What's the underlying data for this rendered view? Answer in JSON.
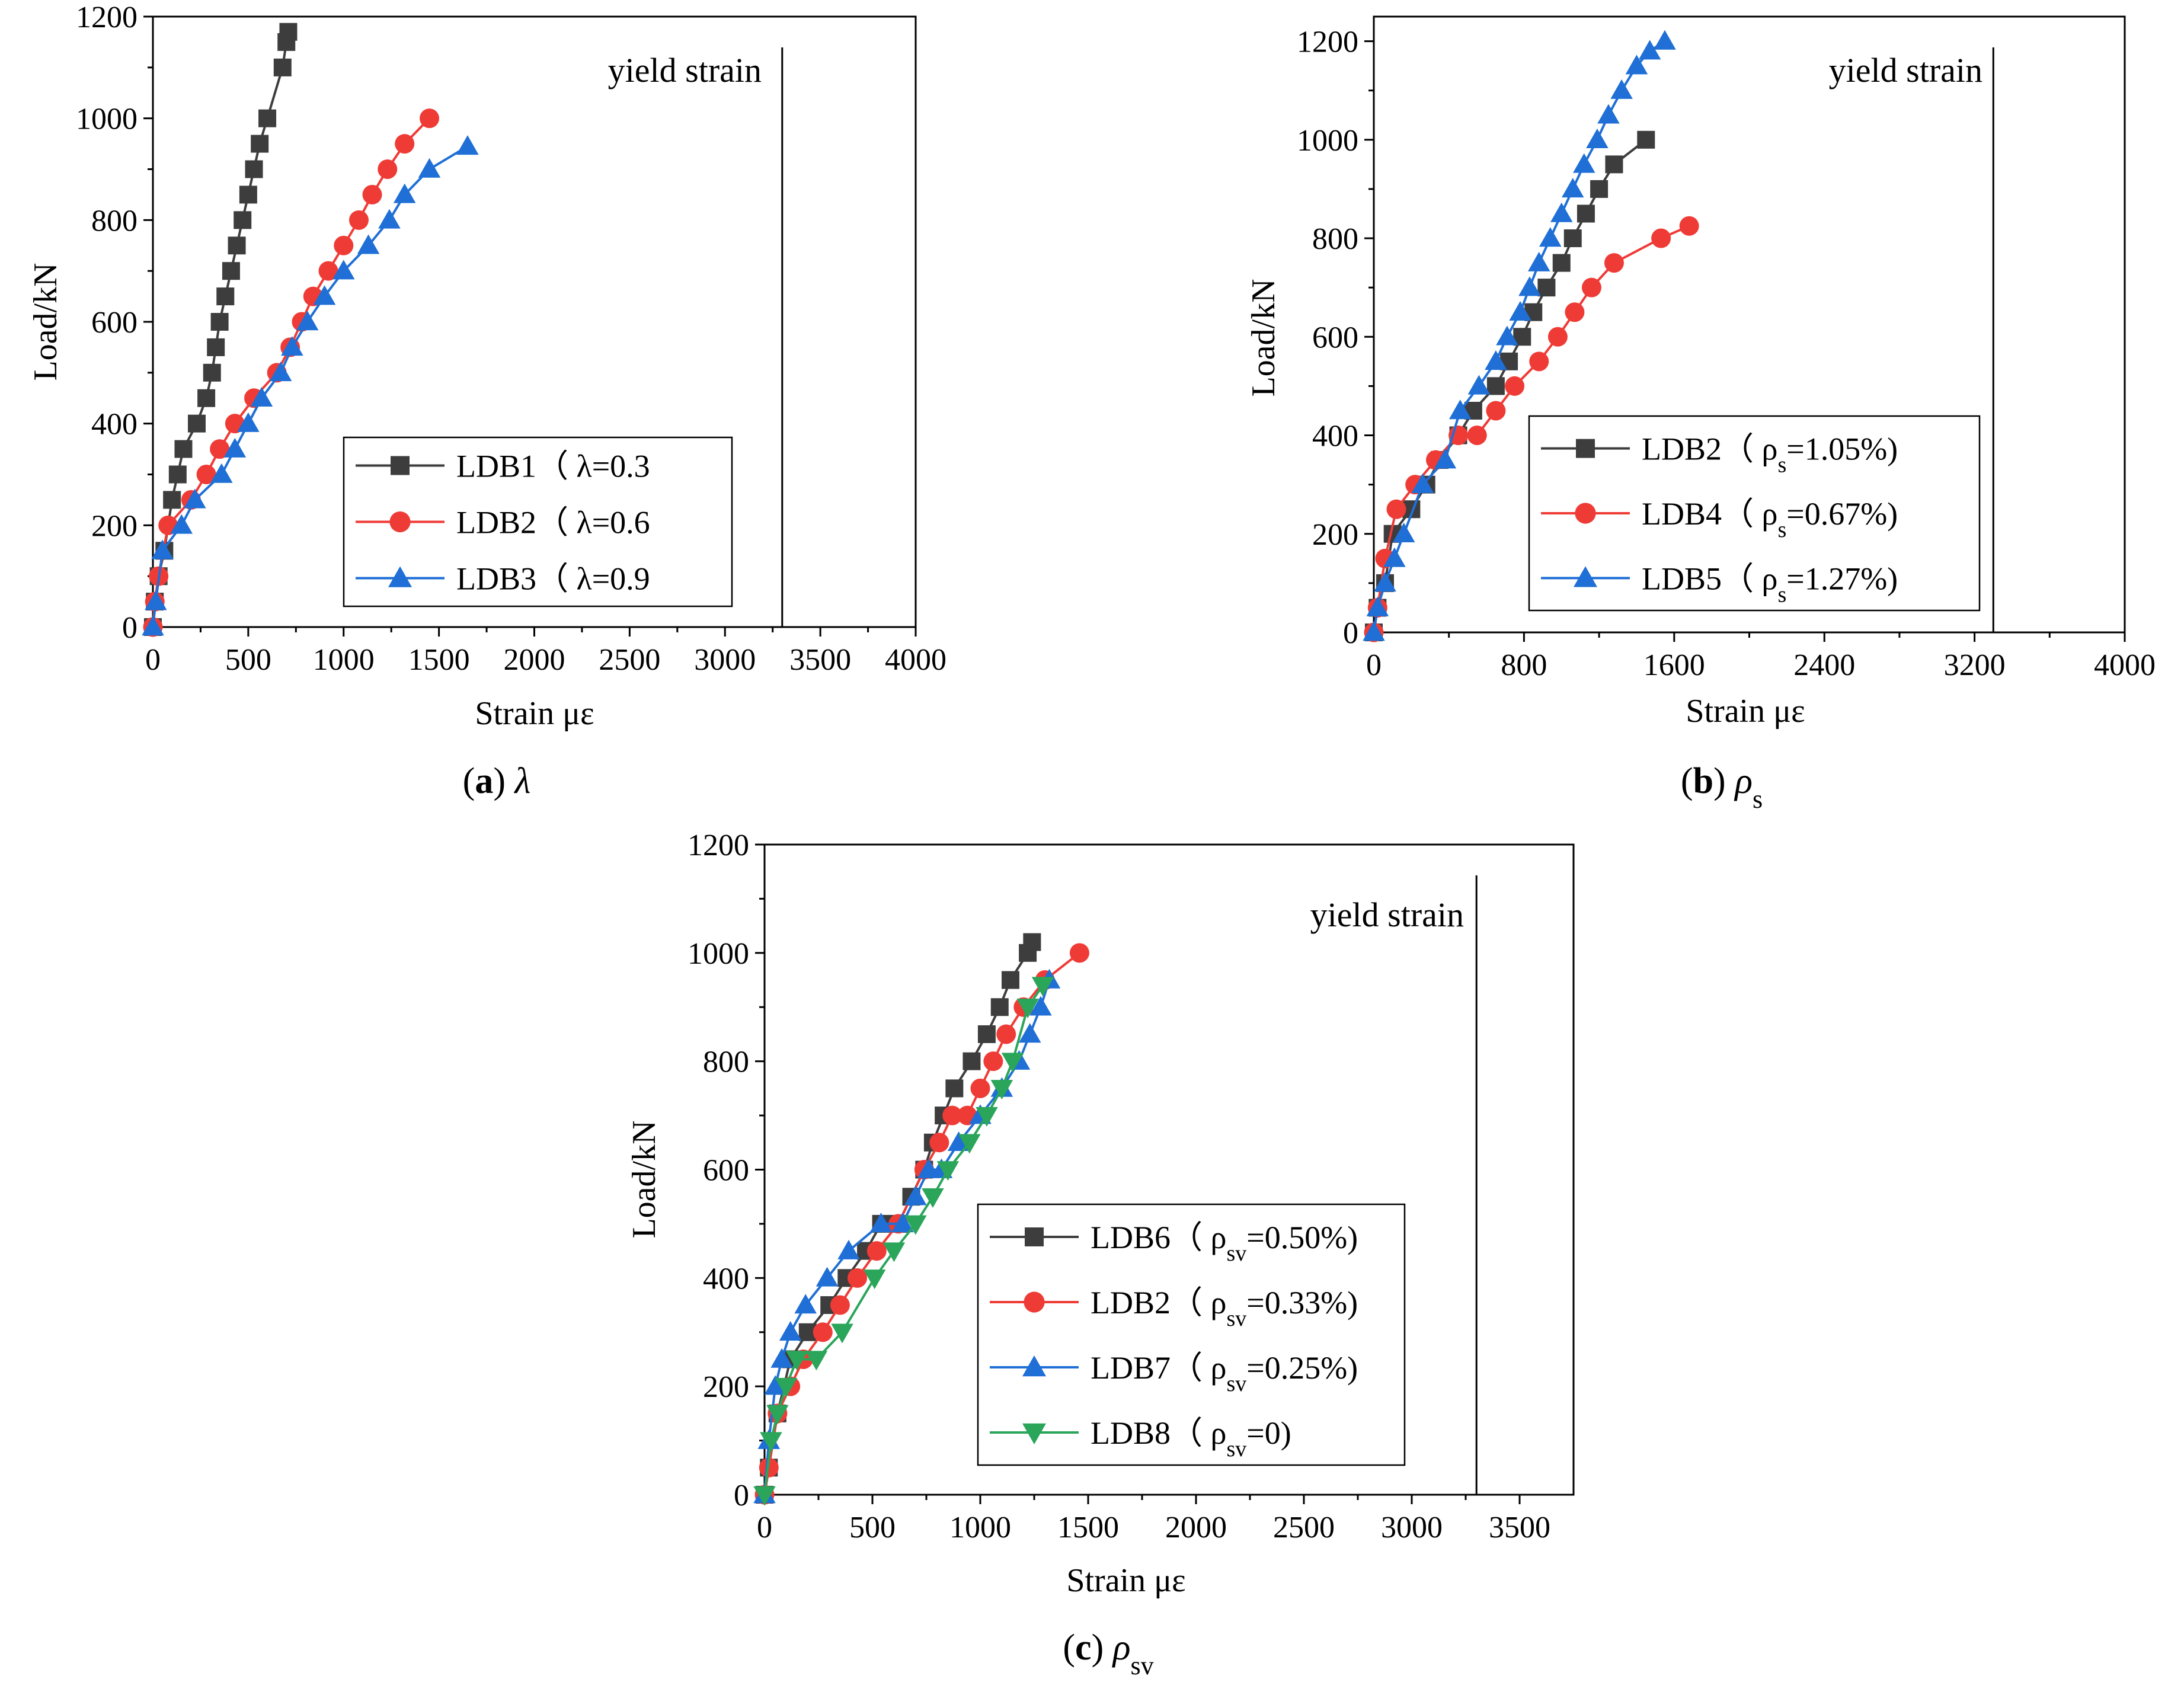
{
  "colors": {
    "black": "#3d3d3d",
    "red": "#ef3b36",
    "blue": "#1f6fd6",
    "green": "#2aa55a"
  },
  "chart_data": [
    {
      "type": "line",
      "caption": {
        "letter": "(a)",
        "symbol": "λ",
        "sub": ""
      },
      "xlabel": "Strain με",
      "ylabel": "Load/kN",
      "xlim": [
        0,
        4000
      ],
      "ylim": [
        0,
        1200
      ],
      "xticks": [
        0,
        500,
        1000,
        1500,
        2000,
        2500,
        3000,
        3500,
        4000
      ],
      "xtick_labels": [
        "0",
        "500",
        "1000",
        "1500",
        "2000",
        "2500",
        "3000",
        "3500",
        "4000"
      ],
      "yticks": [
        0,
        200,
        400,
        600,
        800,
        1000,
        1200
      ],
      "ytick_labels": [
        "0",
        "200",
        "400",
        "600",
        "800",
        "1000",
        "1200"
      ],
      "yield_strain": {
        "x": 3300,
        "label": "yield strain"
      },
      "legend_position": "bottom-center",
      "series": [
        {
          "name": "LDB1",
          "param_sym": "λ",
          "param_sub": "",
          "param_val": "=0.3",
          "color": "black",
          "marker": "square",
          "x": [
            0,
            10,
            30,
            60,
            100,
            130,
            160,
            230,
            280,
            310,
            330,
            350,
            380,
            410,
            440,
            470,
            500,
            530,
            560,
            600,
            680,
            700,
            710
          ],
          "y": [
            0,
            50,
            100,
            150,
            250,
            300,
            350,
            400,
            450,
            500,
            550,
            600,
            650,
            700,
            750,
            800,
            850,
            900,
            950,
            1000,
            1100,
            1150,
            1170
          ]
        },
        {
          "name": "LDB2",
          "param_sym": "λ",
          "param_sub": "",
          "param_val": "=0.6",
          "color": "red",
          "marker": "circle",
          "x": [
            0,
            10,
            30,
            80,
            200,
            280,
            350,
            430,
            530,
            650,
            720,
            780,
            840,
            920,
            1000,
            1080,
            1150,
            1230,
            1320,
            1450
          ],
          "y": [
            0,
            50,
            100,
            200,
            250,
            300,
            350,
            400,
            450,
            500,
            550,
            600,
            650,
            700,
            750,
            800,
            850,
            900,
            950,
            1000
          ]
        },
        {
          "name": "LDB3",
          "param_sym": "λ",
          "param_sub": "",
          "param_val": "=0.9",
          "color": "blue",
          "marker": "triangle",
          "x": [
            0,
            15,
            50,
            150,
            220,
            360,
            430,
            500,
            570,
            670,
            730,
            810,
            900,
            1000,
            1130,
            1240,
            1320,
            1450,
            1650
          ],
          "y": [
            0,
            50,
            150,
            200,
            250,
            300,
            350,
            400,
            450,
            500,
            550,
            600,
            650,
            700,
            750,
            800,
            850,
            900,
            945
          ]
        }
      ]
    },
    {
      "type": "line",
      "caption": {
        "letter": "(b)",
        "symbol": "ρ",
        "sub": "s"
      },
      "xlabel": "Strain  με",
      "ylabel": "Load/kN",
      "xlim": [
        0,
        4000
      ],
      "ylim": [
        0,
        1250
      ],
      "xticks": [
        0,
        800,
        1600,
        2400,
        3200,
        4000
      ],
      "xtick_labels": [
        "0",
        "800",
        "1600",
        "2400",
        "3200",
        "4000"
      ],
      "yticks": [
        0,
        200,
        400,
        600,
        800,
        1000,
        1200
      ],
      "ytick_labels": [
        "0",
        "200",
        "400",
        "600",
        "800",
        "1000",
        "1200"
      ],
      "yield_strain": {
        "x": 3300,
        "label": "yield strain"
      },
      "legend_position": "bottom-center",
      "series": [
        {
          "name": "LDB2",
          "param_sym": "ρ",
          "param_sub": "s",
          "param_val": "=1.05%)",
          "color": "black",
          "marker": "square",
          "x": [
            0,
            20,
            60,
            100,
            200,
            280,
            350,
            450,
            530,
            650,
            720,
            790,
            850,
            920,
            1000,
            1060,
            1130,
            1200,
            1280,
            1450
          ],
          "y": [
            0,
            50,
            100,
            200,
            250,
            300,
            350,
            400,
            450,
            500,
            550,
            600,
            650,
            700,
            750,
            800,
            850,
            900,
            950,
            1000
          ]
        },
        {
          "name": "LDB4",
          "param_sym": "ρ",
          "param_sub": "s",
          "param_val": "=0.67%)",
          "color": "red",
          "marker": "circle",
          "x": [
            0,
            20,
            60,
            120,
            220,
            330,
            450,
            550,
            650,
            750,
            880,
            980,
            1070,
            1160,
            1280,
            1530,
            1680
          ],
          "y": [
            0,
            50,
            150,
            250,
            300,
            350,
            400,
            400,
            450,
            500,
            550,
            600,
            650,
            700,
            750,
            800,
            825
          ]
        },
        {
          "name": "LDB5",
          "param_sym": "ρ",
          "param_sub": "s",
          "param_val": "=1.27%)",
          "color": "blue",
          "marker": "triangle",
          "x": [
            0,
            20,
            60,
            110,
            160,
            260,
            380,
            460,
            560,
            650,
            710,
            780,
            830,
            880,
            940,
            1000,
            1060,
            1120,
            1190,
            1250,
            1320,
            1400,
            1470,
            1550
          ],
          "y": [
            0,
            50,
            100,
            150,
            200,
            300,
            350,
            450,
            500,
            550,
            600,
            650,
            700,
            750,
            800,
            850,
            900,
            950,
            1000,
            1050,
            1100,
            1150,
            1180,
            1200
          ]
        }
      ]
    },
    {
      "type": "line",
      "caption": {
        "letter": "(c)",
        "symbol": "ρ",
        "sub": "sv"
      },
      "xlabel": "Strain με",
      "ylabel": "Load/kN",
      "xlim": [
        0,
        3750
      ],
      "ylim": [
        0,
        1200
      ],
      "xticks": [
        0,
        500,
        1000,
        1500,
        2000,
        2500,
        3000,
        3500
      ],
      "xtick_labels": [
        "0",
        "500",
        "1000",
        "1500",
        "2000",
        "2500",
        "3000",
        "3500"
      ],
      "yticks": [
        0,
        200,
        400,
        600,
        800,
        1000,
        1200
      ],
      "ytick_labels": [
        "0",
        "200",
        "400",
        "600",
        "800",
        "1000",
        "1200"
      ],
      "yield_strain": {
        "x": 3300,
        "label": "yield strain"
      },
      "legend_position": "bottom-right",
      "series": [
        {
          "name": "LDB6",
          "param_sym": "ρ",
          "param_sub": "sv",
          "param_val": "=0.50%)",
          "color": "black",
          "marker": "square",
          "x": [
            0,
            20,
            60,
            120,
            200,
            300,
            380,
            470,
            540,
            620,
            680,
            740,
            780,
            830,
            880,
            960,
            1030,
            1090,
            1140,
            1220,
            1240
          ],
          "y": [
            0,
            50,
            150,
            250,
            300,
            350,
            400,
            450,
            500,
            500,
            550,
            600,
            650,
            700,
            750,
            800,
            850,
            900,
            950,
            1000,
            1020
          ]
        },
        {
          "name": "LDB2",
          "param_sym": "ρ",
          "param_sub": "sv",
          "param_val": "=0.33%)",
          "color": "red",
          "marker": "circle",
          "x": [
            0,
            20,
            60,
            120,
            180,
            270,
            350,
            430,
            520,
            620,
            740,
            810,
            870,
            940,
            1000,
            1060,
            1120,
            1200,
            1300,
            1460
          ],
          "y": [
            0,
            50,
            150,
            200,
            250,
            300,
            350,
            400,
            450,
            500,
            600,
            650,
            700,
            700,
            750,
            800,
            850,
            900,
            950,
            1000
          ]
        },
        {
          "name": "LDB7",
          "param_sym": "ρ",
          "param_sub": "sv",
          "param_val": "=0.25%)",
          "color": "blue",
          "marker": "triangle",
          "x": [
            0,
            20,
            50,
            80,
            120,
            190,
            290,
            390,
            540,
            640,
            700,
            760,
            820,
            900,
            1000,
            1100,
            1180,
            1230,
            1280,
            1320
          ],
          "y": [
            0,
            100,
            200,
            250,
            300,
            350,
            400,
            450,
            500,
            500,
            550,
            600,
            600,
            650,
            700,
            750,
            800,
            850,
            900,
            950
          ]
        },
        {
          "name": "LDB8",
          "param_sym": "ρ",
          "param_sub": "sv",
          "param_val": "=0)",
          "color": "green",
          "marker": "triangle-down",
          "x": [
            0,
            30,
            60,
            100,
            150,
            240,
            360,
            510,
            600,
            700,
            780,
            850,
            950,
            1030,
            1100,
            1150,
            1220,
            1290
          ],
          "y": [
            0,
            100,
            150,
            200,
            250,
            250,
            300,
            400,
            450,
            500,
            550,
            600,
            650,
            700,
            750,
            800,
            900,
            940
          ]
        }
      ]
    }
  ]
}
